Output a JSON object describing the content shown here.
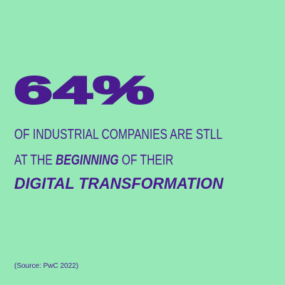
{
  "headline": {
    "stat": "64%"
  },
  "statement": {
    "line1": "OF INDUSTRIAL COMPANIES ARE STLL",
    "line2": [
      "AT THE",
      "BEGINNING",
      "OF THEIR"
    ],
    "line3": "DIGITAL TRANSFORMATION"
  },
  "source": "(Source: PwC 2022)"
}
